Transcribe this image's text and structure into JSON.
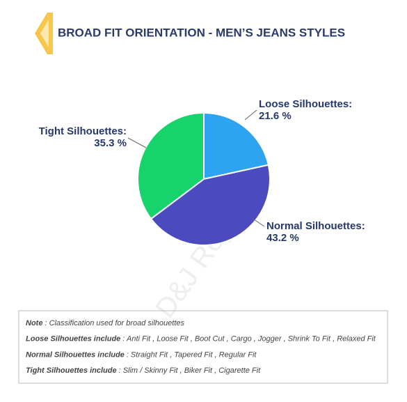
{
  "chart_data": {
    "type": "pie",
    "title": "BROAD FIT ORIENTATION - MEN’S JEANS STYLES",
    "categories": [
      "Loose Silhouettes:",
      "Normal Silhouettes:",
      "Tight Silhouettes:"
    ],
    "values": [
      21.6,
      43.2,
      35.3
    ],
    "value_labels": [
      "21.6 %",
      "43.2 %",
      "35.3 %"
    ],
    "colors": [
      "#2ea3f2",
      "#4b4bbf",
      "#16d46b"
    ]
  },
  "watermark": "D&J Reports",
  "notes": [
    {
      "label": "Note",
      "text": ": Classification used for broad silhouettes"
    },
    {
      "label": "Loose Silhouettes include",
      "text": ": Anti Fit , Loose Fit , Boot Cut , Cargo , Jogger , Shrink To Fit , Relaxed Fit"
    },
    {
      "label": "Normal Silhouettes include",
      "text": ": Straight Fit , Tapered Fit , Regular Fit"
    },
    {
      "label": "Tight Silhouettes include",
      "text": ": Slim / Skinny Fit , Biker Fit , Cigarette Fit"
    }
  ]
}
